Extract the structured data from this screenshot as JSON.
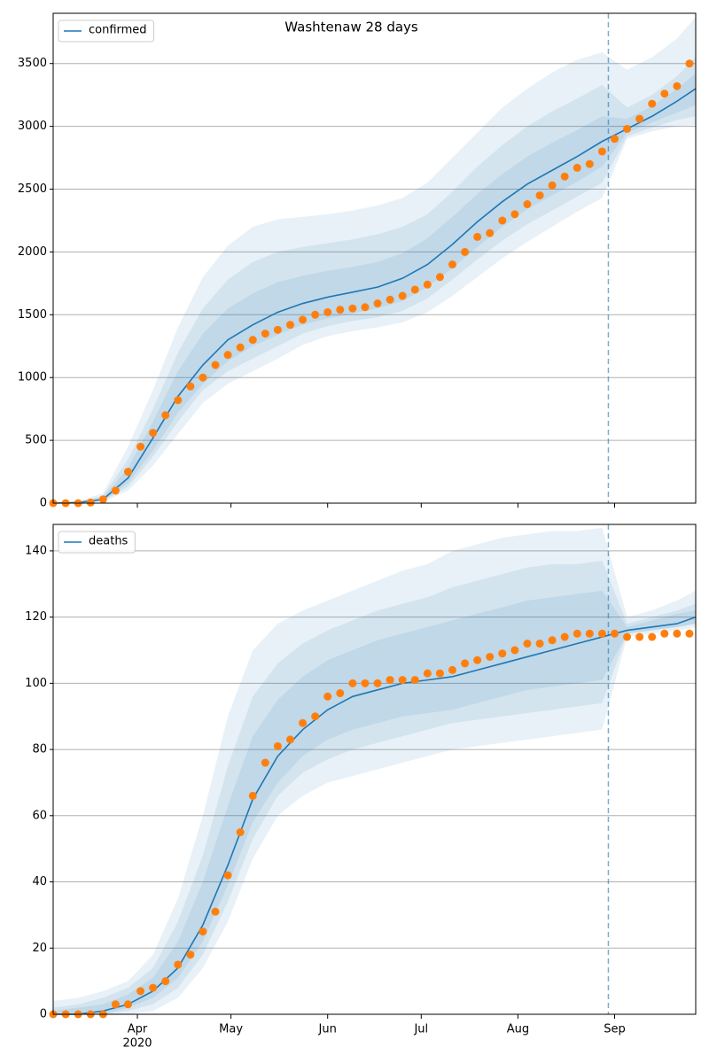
{
  "chart_data": [
    {
      "type": "line",
      "title": "Washtenaw 28 days",
      "legend": "upper left",
      "grid": true,
      "forecast_start": 243,
      "xlim": [
        65,
        271
      ],
      "ylim": [
        0,
        3900
      ],
      "yticks": [
        0,
        500,
        1000,
        1500,
        2000,
        2500,
        3000,
        3500
      ],
      "xticks": [
        92,
        122,
        153,
        183,
        214,
        245
      ],
      "x": [
        65,
        73,
        81,
        89,
        97,
        105,
        113,
        121,
        129,
        137,
        145,
        153,
        161,
        169,
        177,
        185,
        193,
        201,
        209,
        217,
        225,
        233,
        241,
        249,
        257,
        265,
        271
      ],
      "series": [
        {
          "name": "confirmed",
          "color": "#1f77b4",
          "values": [
            0,
            5,
            30,
            200,
            520,
            850,
            1100,
            1300,
            1420,
            1520,
            1590,
            1640,
            1680,
            1720,
            1790,
            1900,
            2060,
            2240,
            2400,
            2540,
            2650,
            2760,
            2880,
            2980,
            3080,
            3200,
            3300
          ]
        }
      ],
      "band_color": "#1f77b4",
      "bands": [
        {
          "lower": [
            0,
            0,
            10,
            100,
            300,
            550,
            800,
            950,
            1050,
            1150,
            1260,
            1330,
            1370,
            1400,
            1440,
            1520,
            1650,
            1800,
            1950,
            2080,
            2200,
            2320,
            2430,
            2900,
            2960,
            3000,
            3010
          ],
          "upper": [
            0,
            15,
            80,
            450,
            900,
            1400,
            1800,
            2050,
            2200,
            2260,
            2280,
            2300,
            2330,
            2370,
            2430,
            2550,
            2750,
            2950,
            3150,
            3300,
            3430,
            3530,
            3590,
            3450,
            3550,
            3700,
            3870
          ]
        },
        {
          "lower": [
            0,
            0,
            15,
            130,
            370,
            650,
            900,
            1050,
            1150,
            1250,
            1350,
            1410,
            1450,
            1480,
            1530,
            1630,
            1780,
            1940,
            2090,
            2220,
            2330,
            2440,
            2550,
            2920,
            2990,
            3050,
            3080
          ],
          "upper": [
            0,
            10,
            60,
            350,
            750,
            1200,
            1550,
            1780,
            1920,
            2000,
            2040,
            2070,
            2100,
            2140,
            2200,
            2300,
            2480,
            2680,
            2850,
            3000,
            3120,
            3220,
            3330,
            3150,
            3250,
            3400,
            3550
          ]
        },
        {
          "lower": [
            0,
            2,
            20,
            160,
            420,
            720,
            950,
            1130,
            1250,
            1340,
            1420,
            1470,
            1510,
            1550,
            1610,
            1720,
            1870,
            2040,
            2200,
            2340,
            2450,
            2560,
            2680,
            2950,
            3030,
            3110,
            3170
          ],
          "upper": [
            0,
            8,
            45,
            280,
            650,
            1050,
            1350,
            1550,
            1670,
            1760,
            1810,
            1850,
            1880,
            1920,
            1990,
            2110,
            2280,
            2460,
            2620,
            2760,
            2870,
            2970,
            3080,
            3060,
            3160,
            3300,
            3420
          ]
        }
      ],
      "observed": {
        "color": "#ff7f0e",
        "x": [
          65,
          69,
          73,
          77,
          81,
          85,
          89,
          93,
          97,
          101,
          105,
          109,
          113,
          117,
          121,
          125,
          129,
          133,
          137,
          141,
          145,
          149,
          153,
          157,
          161,
          165,
          169,
          173,
          177,
          181,
          185,
          189,
          193,
          197,
          201,
          205,
          209,
          213,
          217,
          221,
          225,
          229,
          233,
          237,
          241,
          245,
          249,
          253,
          257,
          261,
          265,
          269
        ],
        "values": [
          0,
          0,
          0,
          5,
          30,
          100,
          250,
          450,
          560,
          700,
          820,
          930,
          1000,
          1100,
          1180,
          1240,
          1300,
          1350,
          1380,
          1420,
          1460,
          1500,
          1520,
          1540,
          1550,
          1560,
          1590,
          1620,
          1650,
          1700,
          1740,
          1800,
          1900,
          2000,
          2120,
          2150,
          2250,
          2300,
          2380,
          2450,
          2530,
          2600,
          2670,
          2700,
          2800,
          2900,
          2980,
          3060,
          3180,
          3260,
          3320,
          3500
        ]
      }
    },
    {
      "type": "line",
      "legend": "upper left",
      "grid": true,
      "forecast_start": 243,
      "xlim": [
        65,
        271
      ],
      "ylim": [
        0,
        148
      ],
      "yticks": [
        0,
        20,
        40,
        60,
        80,
        100,
        120,
        140
      ],
      "xticks": [
        {
          "value": 92,
          "label": "Apr"
        },
        {
          "value": 122,
          "label": "May"
        },
        {
          "value": 153,
          "label": "Jun"
        },
        {
          "value": 183,
          "label": "Jul"
        },
        {
          "value": 214,
          "label": "Aug"
        },
        {
          "value": 245,
          "label": "Sep"
        }
      ],
      "x_sublabel": "2020",
      "x": [
        65,
        73,
        81,
        89,
        97,
        105,
        113,
        121,
        129,
        137,
        145,
        153,
        161,
        169,
        177,
        185,
        193,
        201,
        209,
        217,
        225,
        233,
        241,
        249,
        257,
        265,
        271
      ],
      "series": [
        {
          "name": "deaths",
          "color": "#1f77b4",
          "values": [
            0,
            0,
            1,
            3,
            7,
            14,
            27,
            45,
            65,
            78,
            86,
            92,
            96,
            98,
            100,
            101,
            102,
            104,
            106,
            108,
            110,
            112,
            114,
            116,
            117,
            118,
            120
          ]
        }
      ],
      "band_color": "#1f77b4",
      "bands": [
        {
          "lower": [
            0,
            0,
            0,
            0,
            1,
            5,
            14,
            28,
            47,
            60,
            66,
            70,
            72,
            74,
            76,
            78,
            80,
            81,
            82,
            83,
            84,
            85,
            86,
            114,
            115,
            116,
            117
          ],
          "upper": [
            4,
            5,
            7,
            10,
            18,
            35,
            60,
            90,
            110,
            118,
            122,
            125,
            128,
            131,
            134,
            136,
            140,
            142,
            144,
            145,
            146,
            146,
            147,
            120,
            122,
            125,
            128
          ]
        },
        {
          "lower": [
            0,
            0,
            0,
            1,
            3,
            8,
            18,
            34,
            53,
            66,
            73,
            77,
            80,
            82,
            84,
            86,
            88,
            89,
            90,
            91,
            92,
            93,
            94,
            115,
            116,
            117,
            118
          ],
          "upper": [
            2,
            3,
            5,
            8,
            14,
            28,
            48,
            75,
            96,
            106,
            112,
            116,
            119,
            122,
            124,
            126,
            129,
            131,
            133,
            135,
            136,
            136,
            137,
            118,
            120,
            122,
            124
          ]
        },
        {
          "lower": [
            0,
            0,
            0,
            2,
            5,
            11,
            22,
            39,
            58,
            70,
            78,
            83,
            86,
            88,
            90,
            91,
            92,
            94,
            96,
            98,
            99,
            100,
            101,
            115,
            116,
            117,
            118
          ],
          "upper": [
            1,
            2,
            3,
            6,
            11,
            22,
            40,
            63,
            84,
            95,
            102,
            107,
            110,
            113,
            115,
            117,
            119,
            121,
            123,
            125,
            126,
            127,
            128,
            117,
            119,
            121,
            122
          ]
        }
      ],
      "observed": {
        "color": "#ff7f0e",
        "x": [
          65,
          69,
          73,
          77,
          81,
          85,
          89,
          93,
          97,
          101,
          105,
          109,
          113,
          117,
          121,
          125,
          129,
          133,
          137,
          141,
          145,
          149,
          153,
          157,
          161,
          165,
          169,
          173,
          177,
          181,
          185,
          189,
          193,
          197,
          201,
          205,
          209,
          213,
          217,
          221,
          225,
          229,
          233,
          237,
          241,
          245,
          249,
          253,
          257,
          261,
          265,
          269
        ],
        "values": [
          0,
          0,
          0,
          0,
          0,
          3,
          3,
          7,
          8,
          10,
          15,
          18,
          25,
          31,
          42,
          55,
          66,
          76,
          81,
          83,
          88,
          90,
          96,
          97,
          100,
          100,
          100,
          101,
          101,
          101,
          103,
          103,
          104,
          106,
          107,
          108,
          109,
          110,
          112,
          112,
          113,
          114,
          115,
          115,
          115,
          115,
          114,
          114,
          114,
          115,
          115,
          115
        ]
      }
    }
  ]
}
